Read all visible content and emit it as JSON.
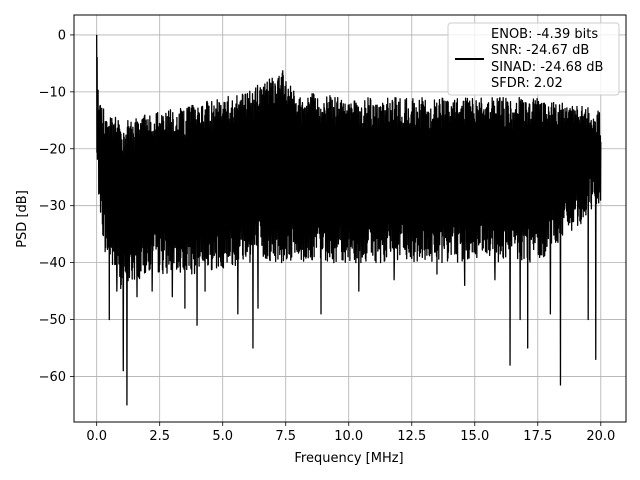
{
  "chart_data": {
    "type": "line",
    "xlabel": "Frequency [MHz]",
    "ylabel": "PSD [dB]",
    "xlim": [
      -0.9,
      21.0
    ],
    "ylim": [
      -68.0,
      3.5
    ],
    "xticks": [
      0.0,
      2.5,
      5.0,
      7.5,
      10.0,
      12.5,
      15.0,
      17.5,
      20.0
    ],
    "xtick_labels": [
      "0.0",
      "2.5",
      "5.0",
      "7.5",
      "10.0",
      "12.5",
      "15.0",
      "17.5",
      "20.0"
    ],
    "yticks": [
      0,
      -10,
      -20,
      -30,
      -40,
      -50,
      -60
    ],
    "ytick_labels": [
      "0",
      "−10",
      "−20",
      "−30",
      "−40",
      "−50",
      "−60"
    ],
    "grid": true,
    "line_color": "#000000",
    "legend": {
      "location": "upper right",
      "lines": [
        "ENOB: -4.39 bits",
        "SNR: -24.67 dB",
        "SINAD: -24.68 dB",
        "SFDR: 2.02"
      ]
    },
    "series": [
      {
        "description_free": true,
        "x_range": [
          0.0,
          20.0
        ],
        "peak": {
          "x": 0.0,
          "y": 0.0
        },
        "upper_envelope": [
          [
            0.0,
            0.0
          ],
          [
            0.1,
            -12
          ],
          [
            0.5,
            -14
          ],
          [
            1.0,
            -15
          ],
          [
            2.0,
            -14
          ],
          [
            3.0,
            -13
          ],
          [
            4.0,
            -12
          ],
          [
            5.0,
            -11
          ],
          [
            6.0,
            -10
          ],
          [
            7.0,
            -7
          ],
          [
            7.5,
            -6
          ],
          [
            8.0,
            -10
          ],
          [
            10.0,
            -11
          ],
          [
            12.5,
            -11
          ],
          [
            15.0,
            -11
          ],
          [
            17.5,
            -11
          ],
          [
            20.0,
            -13
          ]
        ],
        "lower_envelope": [
          [
            0.0,
            -25
          ],
          [
            0.3,
            -38
          ],
          [
            1.0,
            -45
          ],
          [
            2.0,
            -42
          ],
          [
            4.0,
            -42
          ],
          [
            6.0,
            -40
          ],
          [
            8.0,
            -40
          ],
          [
            10.0,
            -40
          ],
          [
            12.5,
            -40
          ],
          [
            15.0,
            -40
          ],
          [
            17.5,
            -40
          ],
          [
            20.0,
            -30
          ]
        ],
        "dips": [
          [
            0.5,
            -50
          ],
          [
            0.8,
            -45
          ],
          [
            1.05,
            -59
          ],
          [
            1.2,
            -65
          ],
          [
            1.6,
            -46
          ],
          [
            2.2,
            -45
          ],
          [
            3.0,
            -46
          ],
          [
            3.5,
            -48
          ],
          [
            3.98,
            -51
          ],
          [
            4.3,
            -45
          ],
          [
            5.6,
            -49
          ],
          [
            6.4,
            -48
          ],
          [
            6.2,
            -55
          ],
          [
            8.9,
            -49
          ],
          [
            10.4,
            -45
          ],
          [
            11.8,
            -43
          ],
          [
            13.5,
            -42
          ],
          [
            14.6,
            -44
          ],
          [
            15.8,
            -43
          ],
          [
            16.4,
            -58
          ],
          [
            16.8,
            -50
          ],
          [
            17.1,
            -55
          ],
          [
            18.0,
            -49
          ],
          [
            18.4,
            -61.5
          ],
          [
            19.5,
            -50
          ],
          [
            19.8,
            -57
          ]
        ]
      }
    ]
  }
}
